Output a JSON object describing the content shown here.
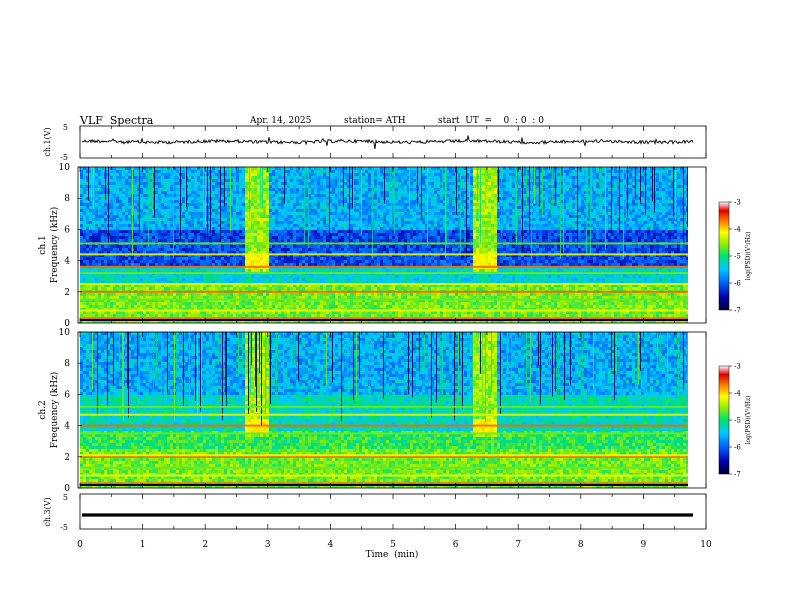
{
  "header": {
    "title": "VLF  Spectra",
    "date": "Apr. 14, 2025",
    "station": "station= ATH",
    "start_ut": "start  UT  =    0  : 0  : 0"
  },
  "chart_data": [
    {
      "type": "line",
      "panel": "ch1-waveform",
      "ylabel": "ch.1(V)",
      "ylim": [
        -5,
        5
      ],
      "yticks": [
        "5",
        "-5"
      ],
      "xlim": [
        0,
        10
      ],
      "baseline": 0.1,
      "series": [
        {
          "values": "noisy trace near 0 V"
        }
      ]
    },
    {
      "type": "heatmap",
      "panel": "ch1-spectrogram",
      "ylabel": "ch.1\nFrequency  (kHz)",
      "ylim": [
        0,
        10
      ],
      "yticks": [
        "0",
        "2",
        "4",
        "6",
        "8",
        "10"
      ],
      "xlim": [
        0,
        9.8
      ],
      "colorbar": {
        "label": "log(PSD)(V²/Hz)",
        "ticks": [
          "-3",
          "-4",
          "-5",
          "-6",
          "-7"
        ],
        "range": [
          -7,
          -3
        ]
      },
      "bright_bursts_min": [
        [
          2.6,
          3.0
        ],
        [
          6.25,
          6.65
        ]
      ],
      "strong_lines_khz": [
        0.3,
        0.8,
        1.5,
        2.0,
        2.5,
        3.2,
        3.6,
        4.4,
        5.1
      ]
    },
    {
      "type": "heatmap",
      "panel": "ch2-spectrogram",
      "ylabel": "ch.2\nFrequency  (kHz)",
      "ylim": [
        0,
        10
      ],
      "yticks": [
        "0",
        "2",
        "4",
        "6",
        "8",
        "10"
      ],
      "xlim": [
        0,
        9.8
      ],
      "colorbar": {
        "label": "log(PSD)(V²/Hz)",
        "ticks": [
          "-3",
          "-4",
          "-5",
          "-6",
          "-7"
        ],
        "range": [
          -7,
          -3
        ]
      },
      "bright_bursts_min": [
        [
          2.6,
          3.0
        ],
        [
          6.25,
          6.65
        ]
      ],
      "strong_lines_khz": [
        0.3,
        0.8,
        1.3,
        2.0,
        2.1,
        3.5,
        4.0,
        4.7,
        5.2
      ]
    },
    {
      "type": "line",
      "panel": "ch3-waveform",
      "ylabel": "ch.3(V)",
      "ylim": [
        -5,
        5
      ],
      "yticks": [
        "5",
        "-5"
      ],
      "xlim": [
        0,
        10
      ],
      "baseline": -1.0,
      "series": [
        {
          "values": "flat trace near -1 V"
        }
      ]
    }
  ],
  "xaxis": {
    "label": "Time  (min)",
    "ticks": [
      "0",
      "1",
      "2",
      "3",
      "4",
      "5",
      "6",
      "7",
      "8",
      "9",
      "10"
    ],
    "range": [
      0,
      10
    ],
    "data_end": 9.8
  }
}
